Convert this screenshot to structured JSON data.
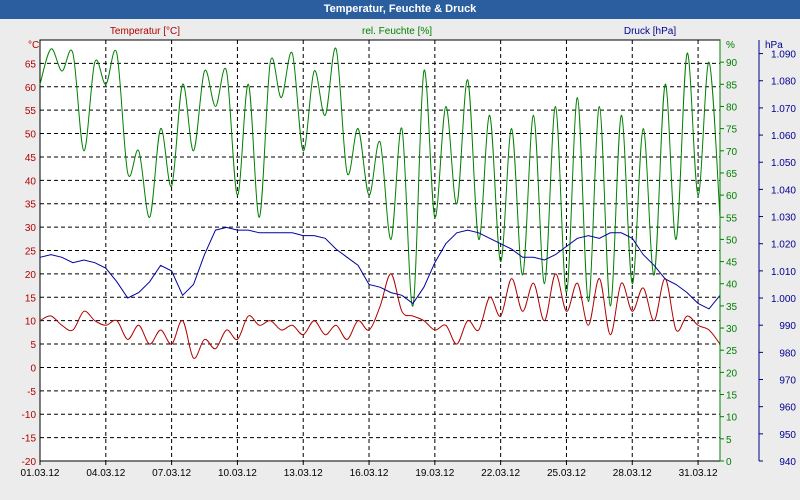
{
  "window": {
    "title": "Temperatur, Feuchte & Druck"
  },
  "chart_data": {
    "type": "line",
    "x_tick_labels": [
      "01.03.12",
      "04.03.12",
      "07.03.12",
      "10.03.12",
      "13.03.12",
      "16.03.12",
      "19.03.12",
      "22.03.12",
      "25.03.12",
      "28.03.12",
      "31.03.12"
    ],
    "x_range": [
      "01.03.12",
      "01.04.12"
    ],
    "grid": true,
    "axes": {
      "temperature": {
        "label": "Temperatur [°C]",
        "unit": "°C",
        "min": -20,
        "max": 70,
        "ticks": [
          "65",
          "60",
          "55",
          "50",
          "45",
          "40",
          "35",
          "30",
          "25",
          "20",
          "15",
          "10",
          "5",
          "0",
          "-5",
          "-10",
          "-15",
          "-20"
        ],
        "color": "#b00000"
      },
      "humidity": {
        "label": "rel. Feuchte [%]",
        "unit": "%",
        "min": 0,
        "max": 95,
        "ticks": [
          "90",
          "85",
          "80",
          "75",
          "70",
          "65",
          "60",
          "55",
          "50",
          "45",
          "40",
          "35",
          "30",
          "25",
          "20",
          "15",
          "10",
          "5",
          "0"
        ],
        "color": "#008000"
      },
      "pressure": {
        "label": "Druck [hPa]",
        "unit": "hPa",
        "min": 940,
        "max": 1095,
        "ticks": [
          "1.090",
          "1.080",
          "1.070",
          "1.060",
          "1.050",
          "1.040",
          "1.030",
          "1.020",
          "1.010",
          "1.000",
          "990",
          "980",
          "970",
          "960",
          "950",
          "940"
        ],
        "color": "#000090"
      }
    },
    "series": [
      {
        "name": "Temperatur [°C]",
        "axis": "temperature",
        "color": "#b00000",
        "x": [
          0,
          0.5,
          1,
          1.5,
          2,
          2.5,
          3,
          3.5,
          4,
          4.5,
          5,
          5.5,
          6,
          6.5,
          7,
          7.5,
          8,
          8.5,
          9,
          9.5,
          10,
          10.5,
          11,
          11.5,
          12,
          12.5,
          13,
          13.5,
          14,
          14.5,
          15,
          15.5,
          16,
          16.5,
          17,
          17.5,
          18,
          18.5,
          19,
          19.5,
          20,
          20.5,
          21,
          21.5,
          22,
          22.5,
          23,
          23.5,
          24,
          24.5,
          25,
          25.5,
          26,
          26.5,
          27,
          27.5,
          28,
          28.5,
          29,
          29.5,
          30,
          30.5,
          31
        ],
        "values": [
          10,
          11,
          9,
          8,
          12,
          10,
          9,
          10,
          6,
          9,
          5,
          8,
          5,
          10,
          2,
          6,
          4,
          8,
          6,
          11,
          9,
          10,
          8,
          9,
          7,
          10,
          7,
          9,
          6,
          10,
          8,
          13,
          20,
          12,
          11,
          10,
          8,
          9,
          5,
          10,
          8,
          15,
          11,
          19,
          12,
          18,
          10,
          20,
          12,
          18,
          9,
          19,
          7,
          18,
          12,
          17,
          10,
          19,
          8,
          11,
          9,
          8,
          5
        ],
        "smooth": true
      },
      {
        "name": "rel. Feuchte [%]",
        "axis": "humidity",
        "color": "#008000",
        "x": [
          0,
          0.5,
          1,
          1.5,
          2,
          2.5,
          3,
          3.5,
          4,
          4.5,
          5,
          5.5,
          6,
          6.5,
          7,
          7.5,
          8,
          8.5,
          9,
          9.5,
          10,
          10.5,
          11,
          11.5,
          12,
          12.5,
          13,
          13.5,
          14,
          14.5,
          15,
          15.5,
          16,
          16.5,
          17,
          17.5,
          18,
          18.5,
          19,
          19.5,
          20,
          20.5,
          21,
          21.5,
          22,
          22.5,
          23,
          23.5,
          24,
          24.5,
          25,
          25.5,
          26,
          26.5,
          27,
          27.5,
          28,
          28.5,
          29,
          29.5,
          30,
          30.5,
          31
        ],
        "values": [
          85,
          93,
          88,
          92,
          70,
          90,
          85,
          92,
          65,
          70,
          55,
          75,
          62,
          85,
          70,
          88,
          80,
          88,
          60,
          85,
          55,
          90,
          82,
          92,
          70,
          88,
          78,
          93,
          65,
          75,
          60,
          72,
          50,
          75,
          35,
          88,
          55,
          80,
          58,
          86,
          50,
          78,
          45,
          75,
          42,
          78,
          40,
          80,
          38,
          82,
          36,
          80,
          35,
          78,
          40,
          75,
          42,
          85,
          50,
          92,
          60,
          90,
          55
        ],
        "smooth": true
      },
      {
        "name": "Druck [hPa]",
        "axis": "pressure",
        "color": "#0000a0",
        "x": [
          0,
          0.5,
          1,
          1.5,
          2,
          2.5,
          3,
          3.5,
          4,
          4.5,
          5,
          5.5,
          6,
          6.5,
          7,
          7.5,
          8,
          8.5,
          9,
          9.5,
          10,
          10.5,
          11,
          11.5,
          12,
          12.5,
          13,
          13.5,
          14,
          14.5,
          15,
          15.5,
          16,
          16.5,
          17,
          17.5,
          18,
          18.5,
          19,
          19.5,
          20,
          20.5,
          21,
          21.5,
          22,
          22.5,
          23,
          23.5,
          24,
          24.5,
          25,
          25.5,
          26,
          26.5,
          27,
          27.5,
          28,
          28.5,
          29,
          29.5,
          30,
          30.5,
          31
        ],
        "values": [
          1015,
          1016,
          1015,
          1013,
          1014,
          1013,
          1011,
          1006,
          1000,
          1002,
          1006,
          1012,
          1010,
          1001,
          1005,
          1016,
          1025,
          1026,
          1025,
          1025,
          1024,
          1024,
          1024,
          1024,
          1023,
          1023,
          1022,
          1018,
          1015,
          1012,
          1005,
          1004,
          1002,
          1001,
          998,
          1004,
          1013,
          1020,
          1024,
          1025,
          1024,
          1022,
          1020,
          1018,
          1015,
          1015,
          1014,
          1016,
          1019,
          1022,
          1023,
          1022,
          1024,
          1024,
          1022,
          1016,
          1012,
          1007,
          1005,
          1002,
          998,
          996,
          1001
        ],
        "smooth": false
      }
    ]
  }
}
